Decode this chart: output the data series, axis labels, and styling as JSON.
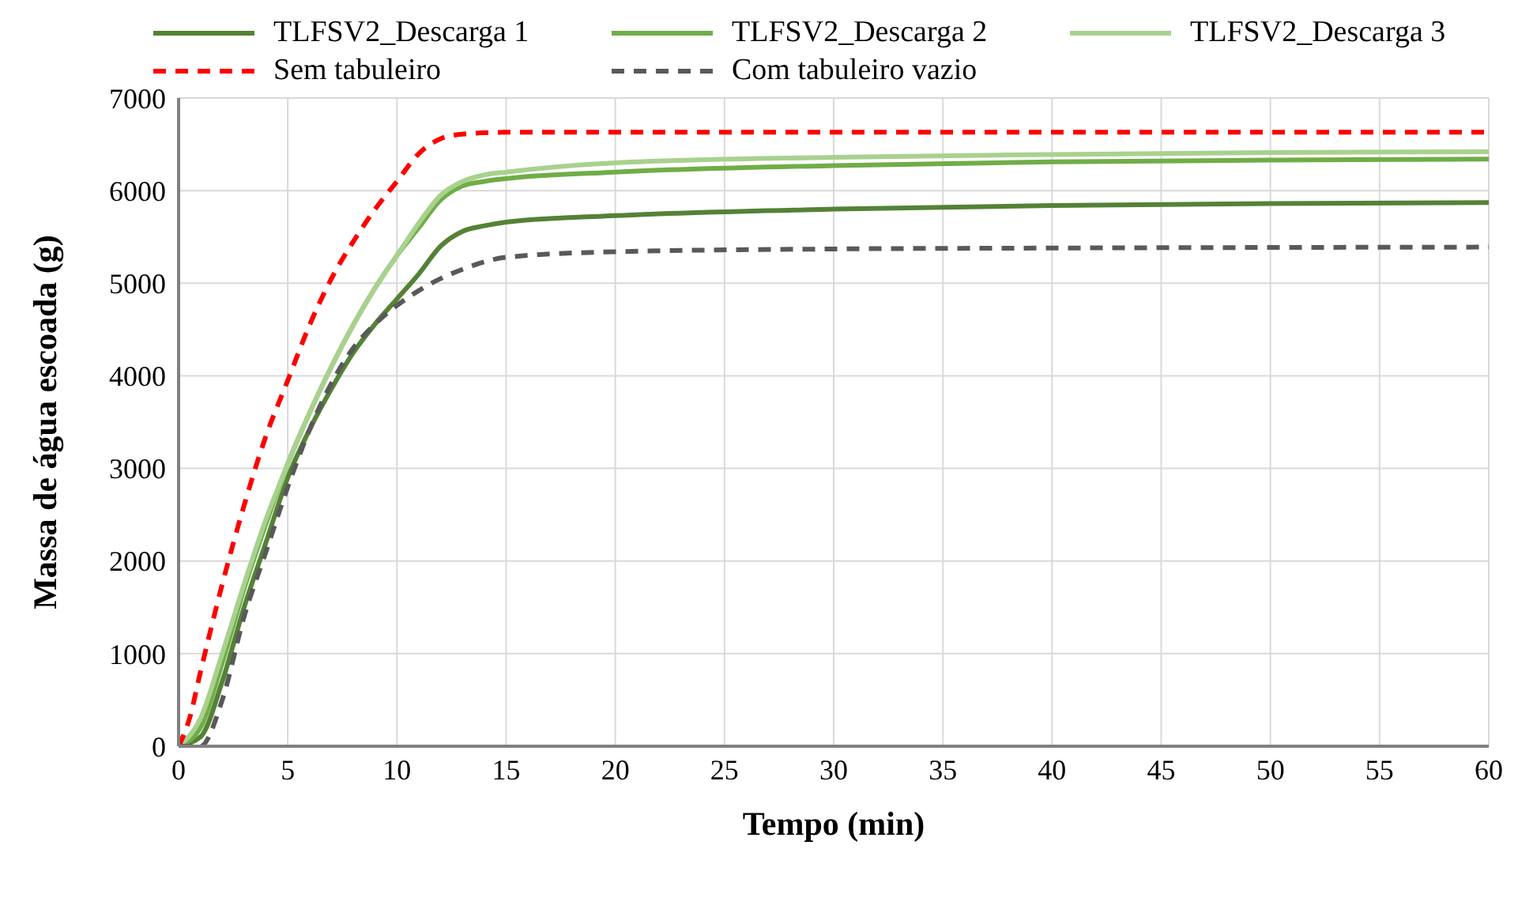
{
  "chart_data": {
    "type": "line",
    "xlabel": "Tempo (min)",
    "ylabel": "Massa de água escoada (g)",
    "xlim": [
      0,
      60
    ],
    "xticks": [
      0,
      5,
      10,
      15,
      20,
      25,
      30,
      35,
      40,
      45,
      50,
      55,
      60
    ],
    "ylim": [
      0,
      7000
    ],
    "yticks": [
      0,
      1000,
      2000,
      3000,
      4000,
      5000,
      6000,
      7000
    ],
    "grid": true,
    "legend": "top",
    "marker": "none",
    "series": [
      {
        "name": "TLFSV2_Descarga 1",
        "color": "#548235",
        "line_style": "solid",
        "x": [
          0,
          1,
          2,
          3,
          4,
          5,
          6,
          7,
          8,
          9,
          10,
          11,
          12,
          13,
          14,
          15,
          20,
          30,
          40,
          50,
          60
        ],
        "values": [
          0,
          100,
          700,
          1500,
          2200,
          2900,
          3420,
          3860,
          4250,
          4560,
          4830,
          5100,
          5400,
          5560,
          5620,
          5660,
          5730,
          5800,
          5840,
          5860,
          5870
        ]
      },
      {
        "name": "TLFSV2_Descarga 2",
        "color": "#70ad47",
        "line_style": "solid",
        "x": [
          0,
          1,
          2,
          3,
          4,
          5,
          6,
          7,
          8,
          9,
          10,
          11,
          12,
          13,
          14,
          15,
          20,
          30,
          40,
          50,
          60
        ],
        "values": [
          0,
          200,
          900,
          1700,
          2400,
          3050,
          3600,
          4100,
          4550,
          4950,
          5300,
          5600,
          5900,
          6050,
          6100,
          6130,
          6200,
          6270,
          6310,
          6330,
          6340
        ]
      },
      {
        "name": "TLFSV2_Descarga 3",
        "color": "#a9d18e",
        "line_style": "solid",
        "x": [
          0,
          1,
          2,
          3,
          4,
          5,
          6,
          7,
          8,
          9,
          10,
          11,
          12,
          13,
          14,
          15,
          20,
          30,
          40,
          50,
          60
        ],
        "values": [
          0,
          300,
          1000,
          1750,
          2450,
          3050,
          3600,
          4100,
          4550,
          4950,
          5300,
          5650,
          5950,
          6100,
          6170,
          6200,
          6300,
          6360,
          6390,
          6410,
          6420
        ]
      },
      {
        "name": "Sem tabuleiro",
        "color": "#ff0000",
        "line_style": "dashed",
        "x": [
          0,
          0.5,
          1,
          2,
          3,
          4,
          5,
          6,
          7,
          8,
          9,
          10,
          11,
          12,
          13,
          15,
          20,
          60
        ],
        "values": [
          0,
          300,
          800,
          1750,
          2600,
          3350,
          3950,
          4550,
          5050,
          5450,
          5800,
          6100,
          6400,
          6560,
          6610,
          6630,
          6630,
          6630
        ]
      },
      {
        "name": "Com tabuleiro vazio",
        "color": "#595959",
        "line_style": "dashed",
        "x": [
          0,
          1,
          2,
          3,
          4,
          5,
          6,
          7,
          8,
          9,
          10,
          11,
          12,
          13,
          14,
          15,
          20,
          30,
          40,
          60
        ],
        "values": [
          0,
          0,
          500,
          1400,
          2100,
          2800,
          3420,
          3920,
          4300,
          4560,
          4760,
          4920,
          5050,
          5150,
          5230,
          5280,
          5340,
          5370,
          5380,
          5390
        ]
      }
    ]
  }
}
